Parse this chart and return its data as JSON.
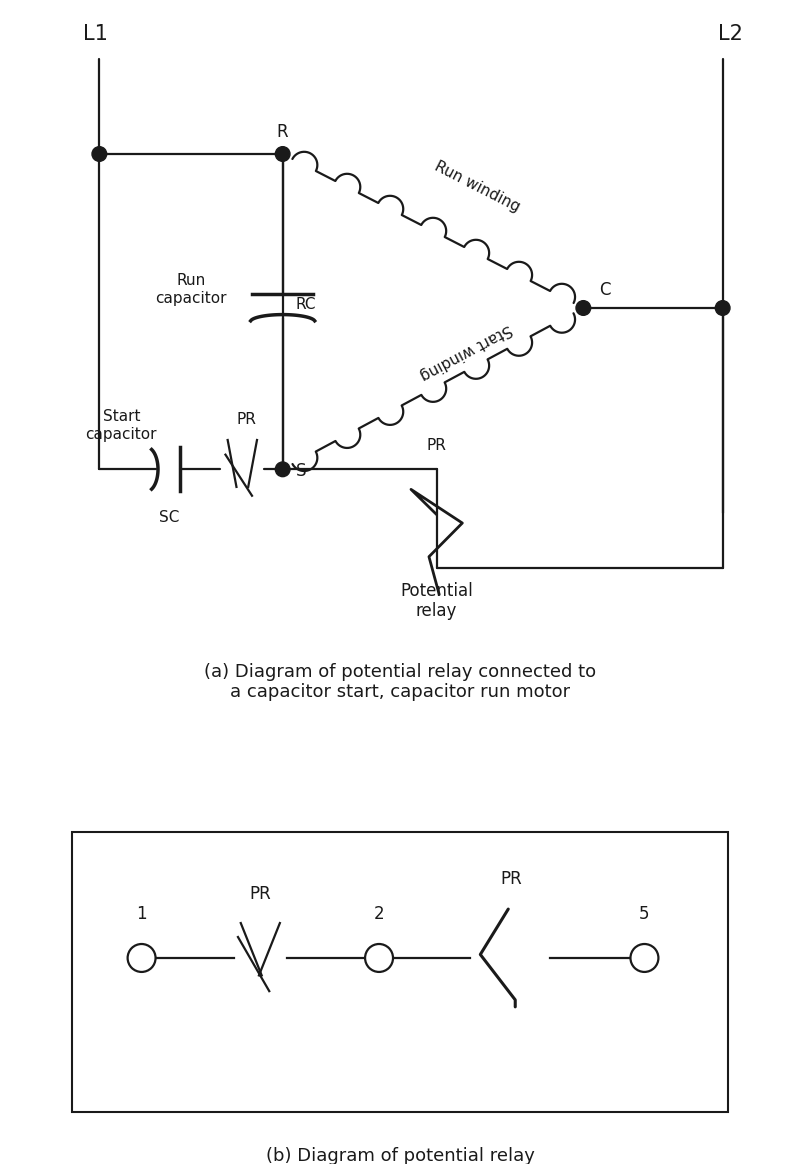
{
  "bg_color": "#ffffff",
  "line_color": "#1a1a1a",
  "title_a": "(a) Diagram of potential relay connected to\na capacitor start, capacitor run motor",
  "title_b": "(b) Diagram of potential relay",
  "label_L1": "L1",
  "label_L2": "L2",
  "label_R": "R",
  "label_C": "C",
  "label_S": "S",
  "label_RC": "RC",
  "label_SC": "SC",
  "label_PR": "PR",
  "label_Run_cap": "Run\ncapacitor",
  "label_Start_cap": "Start\ncapacitor",
  "label_Run_winding": "Run winding",
  "label_Start_winding": "Start winding",
  "label_Potential_relay": "Potential\nrelay",
  "label_1": "1",
  "label_2": "2",
  "label_5": "5",
  "font_size_title": 15,
  "font_size_label": 13,
  "font_size_small": 12
}
